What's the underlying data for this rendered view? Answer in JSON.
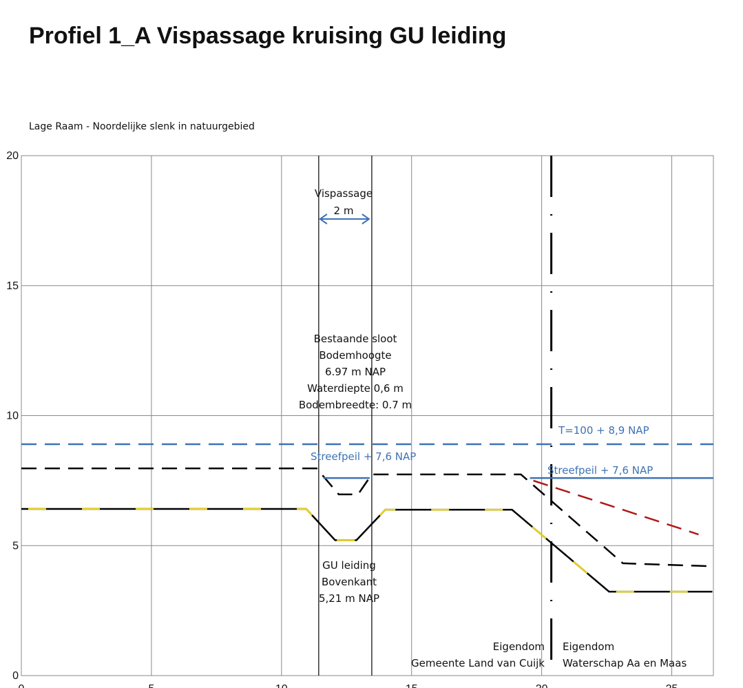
{
  "chart_data": {
    "type": "line",
    "title": "Profiel 1_A  Vispassage kruising GU leiding",
    "subtitle": "Lage Raam - Noordelijke slenk in natuurgebied",
    "xlim": [
      0,
      26.6
    ],
    "ylim": [
      0,
      20
    ],
    "xticks": [
      0,
      5,
      10,
      15,
      20,
      25
    ],
    "yticks": [
      0,
      5,
      10,
      15,
      20
    ],
    "grid": true,
    "verticals": [
      11.43,
      13.47
    ],
    "boundary": 20.37,
    "series": [
      {
        "color": "#000000",
        "accent": "#e8d21a",
        "dash": "accent",
        "x": [
          0,
          10.95,
          12.06,
          12.88,
          13.99,
          18.86,
          22.59,
          26.56
        ],
        "values": [
          6.41,
          6.41,
          5.21,
          5.21,
          6.38,
          6.38,
          3.23,
          3.23
        ]
      },
      {
        "color": "#000000",
        "dash": "dashed",
        "x": [
          0,
          11.35,
          12.2,
          12.94,
          13.47,
          19.2,
          23.12,
          26.43
        ],
        "values": [
          7.97,
          7.97,
          6.97,
          6.97,
          7.74,
          7.74,
          4.32,
          4.21
        ]
      },
      {
        "color": "#3d72b4",
        "dash": "dashed",
        "x": [
          0,
          26.6
        ],
        "values": [
          8.9,
          8.9
        ]
      },
      {
        "color": "#3d72b4",
        "dash": "solid",
        "x": [
          11.61,
          13.39,
          16,
          19.55,
          26.59
        ],
        "values": [
          7.6,
          7.6,
          null,
          7.6,
          7.6
        ]
      },
      {
        "color": "#b01818",
        "dash": "dashed",
        "x": [
          19.68,
          26.03
        ],
        "values": [
          7.5,
          5.43
        ]
      }
    ],
    "annotations": [
      "Vispassage",
      "2 m",
      "Bestaande sloot",
      "Bodemhoogte",
      "6.97 m NAP",
      "Waterdiepte 0,6 m",
      "Bodembreedte: 0.7 m",
      "Streefpeil  + 7,6 NAP",
      "T=100 + 8,9 NAP",
      "Streefpeil  + 7,6 NAP",
      "GU leiding",
      "Bovenkant",
      "5,21 m NAP",
      "Eigendom",
      "Gemeente Land van Cuijk",
      "Eigendom",
      "Waterschap Aa en Maas"
    ]
  }
}
